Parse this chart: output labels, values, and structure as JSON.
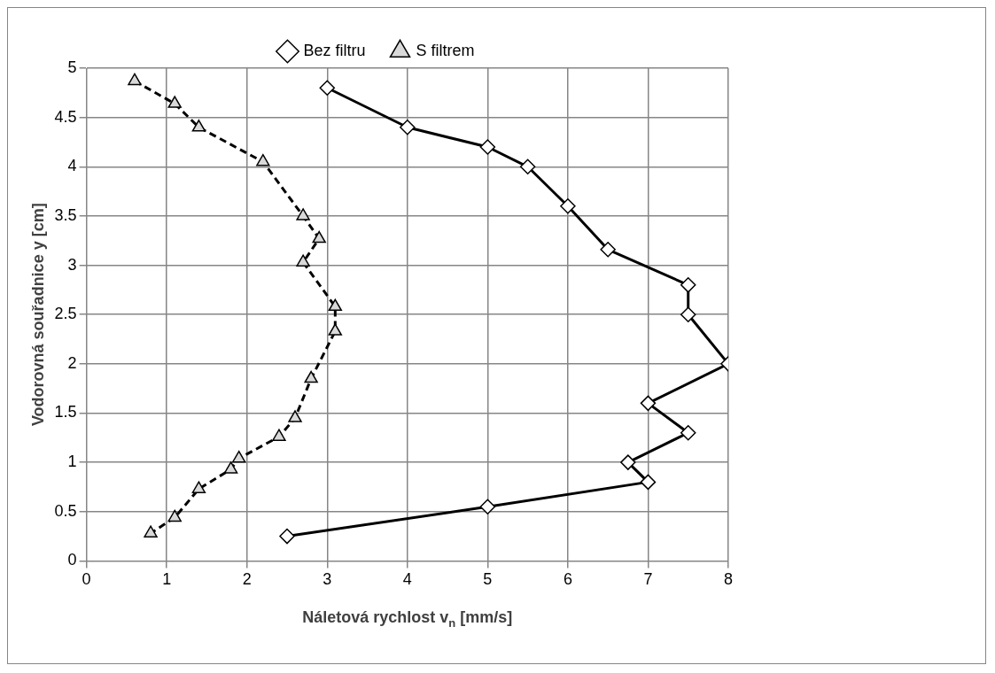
{
  "chart_data": {
    "type": "line",
    "xlabel": "Náletová rychlost v$_{n}$ [mm/s]",
    "ylabel": "Vodorovná souřadnice y [cm]",
    "xlim": [
      0,
      8
    ],
    "xticks": [
      0,
      1,
      2,
      3,
      4,
      5,
      6,
      7,
      8
    ],
    "ylim": [
      0,
      5
    ],
    "yticks": [
      0,
      0.5,
      1,
      1.5,
      2,
      2.5,
      3,
      3.5,
      4,
      4.5,
      5
    ],
    "grid": true,
    "legend": "top",
    "series": [
      {
        "name": "Bez filtru",
        "color": "#000000",
        "marker": "diamond",
        "line_style": "solid",
        "x": [
          3,
          4,
          5,
          5.5,
          6,
          6.5,
          7.5,
          7.5,
          8,
          7,
          7.5,
          6.75,
          7,
          5,
          2.5
        ],
        "values": [
          4.8,
          4.4,
          4.2,
          4.0,
          3.6,
          3.16,
          2.8,
          2.5,
          2,
          1.6,
          1.3,
          1.0,
          0.8,
          0.55,
          0.25
        ]
      },
      {
        "name": "S filtrem",
        "color": "#000000",
        "marker": "triangle",
        "line_style": "dashed",
        "x": [
          0.6,
          1.1,
          1.4,
          2.2,
          2.7,
          2.9,
          2.7,
          3.1,
          3.1,
          2.8,
          2.6,
          2.4,
          1.9,
          1.8,
          1.4,
          1.1,
          0.8
        ],
        "values": [
          4.87,
          4.64,
          4.4,
          4.05,
          3.5,
          3.27,
          3.03,
          2.58,
          2.33,
          1.85,
          1.45,
          1.26,
          1.04,
          0.93,
          0.73,
          0.44,
          0.28
        ]
      }
    ]
  }
}
